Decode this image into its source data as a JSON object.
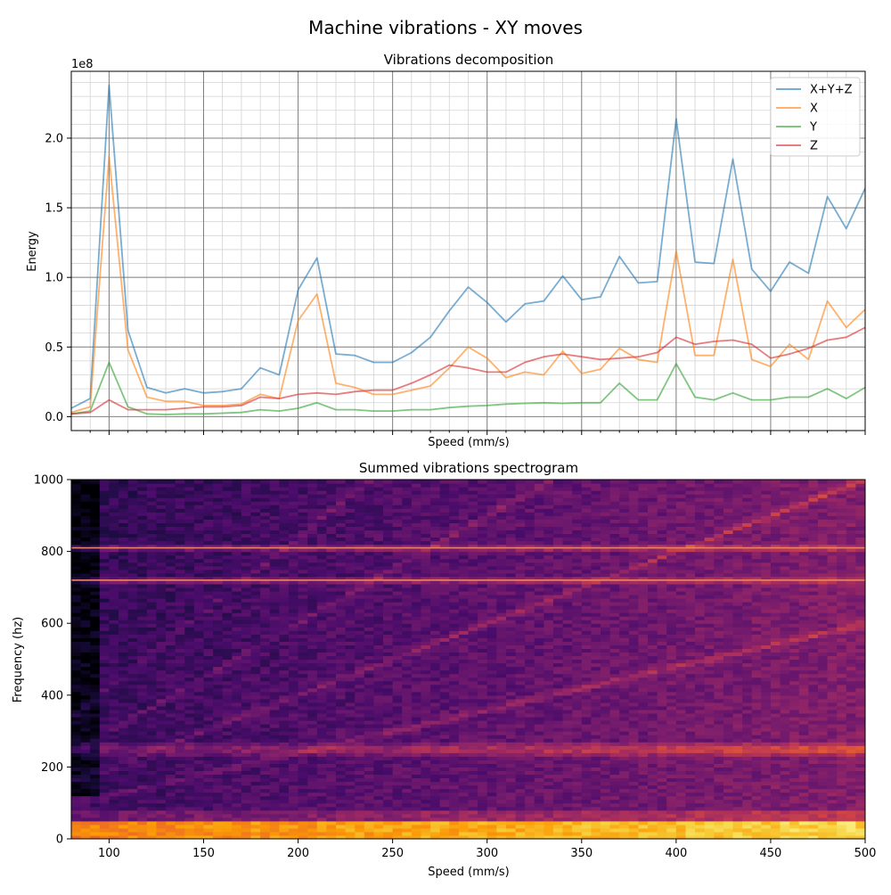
{
  "figure": {
    "title": "Machine vibrations - XY moves"
  },
  "chart_data": [
    {
      "type": "line",
      "title": "Vibrations decomposition",
      "xlabel": "Speed (mm/s)",
      "ylabel": "Energy",
      "y_offset_label": "1e8",
      "xlim": [
        80,
        500
      ],
      "ylim": [
        -0.1,
        2.48
      ],
      "y_units": "1e8",
      "xticks": [
        100,
        150,
        200,
        250,
        300,
        350,
        400,
        450,
        500
      ],
      "yticks": [
        0.0,
        0.5,
        1.0,
        1.5,
        2.0
      ],
      "ytick_labels": [
        "0.0",
        "0.5",
        "1.0",
        "1.5",
        "2.0"
      ],
      "grid": true,
      "legend": "top-right",
      "x": [
        80,
        90,
        100,
        110,
        120,
        130,
        140,
        150,
        160,
        170,
        180,
        190,
        200,
        210,
        220,
        230,
        240,
        250,
        260,
        270,
        280,
        290,
        300,
        310,
        320,
        330,
        340,
        350,
        360,
        370,
        380,
        390,
        400,
        410,
        420,
        430,
        440,
        450,
        460,
        470,
        480,
        490,
        500
      ],
      "series": [
        {
          "name": "X+Y+Z",
          "color": "#1f77b4",
          "values": [
            0.06,
            0.13,
            2.38,
            0.62,
            0.21,
            0.17,
            0.2,
            0.17,
            0.18,
            0.2,
            0.35,
            0.3,
            0.91,
            1.14,
            0.45,
            0.44,
            0.39,
            0.39,
            0.46,
            0.57,
            0.76,
            0.93,
            0.82,
            0.68,
            0.81,
            0.83,
            1.01,
            0.84,
            0.86,
            1.15,
            0.96,
            0.97,
            2.14,
            1.11,
            1.1,
            1.85,
            1.06,
            0.9,
            1.11,
            1.03,
            1.58,
            1.35,
            1.64
          ]
        },
        {
          "name": "X",
          "color": "#ff7f0e",
          "values": [
            0.03,
            0.07,
            1.87,
            0.48,
            0.14,
            0.11,
            0.11,
            0.08,
            0.08,
            0.09,
            0.16,
            0.13,
            0.69,
            0.88,
            0.24,
            0.21,
            0.16,
            0.16,
            0.19,
            0.22,
            0.35,
            0.5,
            0.42,
            0.28,
            0.32,
            0.3,
            0.47,
            0.31,
            0.34,
            0.49,
            0.41,
            0.39,
            1.19,
            0.44,
            0.44,
            1.13,
            0.41,
            0.36,
            0.52,
            0.41,
            0.83,
            0.64,
            0.77
          ]
        },
        {
          "name": "Y",
          "color": "#2ca02c",
          "values": [
            0.02,
            0.04,
            0.39,
            0.07,
            0.02,
            0.015,
            0.02,
            0.02,
            0.025,
            0.03,
            0.05,
            0.04,
            0.06,
            0.1,
            0.05,
            0.05,
            0.04,
            0.04,
            0.05,
            0.05,
            0.065,
            0.075,
            0.08,
            0.09,
            0.095,
            0.1,
            0.095,
            0.1,
            0.1,
            0.24,
            0.12,
            0.12,
            0.38,
            0.14,
            0.12,
            0.17,
            0.12,
            0.12,
            0.14,
            0.14,
            0.2,
            0.13,
            0.21
          ]
        },
        {
          "name": "Z",
          "color": "#d62728",
          "values": [
            0.02,
            0.03,
            0.12,
            0.05,
            0.05,
            0.05,
            0.06,
            0.07,
            0.07,
            0.08,
            0.14,
            0.13,
            0.16,
            0.17,
            0.16,
            0.18,
            0.19,
            0.19,
            0.24,
            0.3,
            0.37,
            0.35,
            0.32,
            0.32,
            0.39,
            0.43,
            0.45,
            0.43,
            0.41,
            0.42,
            0.43,
            0.46,
            0.57,
            0.52,
            0.54,
            0.55,
            0.52,
            0.42,
            0.45,
            0.49,
            0.55,
            0.57,
            0.64
          ]
        }
      ]
    },
    {
      "type": "heatmap",
      "title": "Summed vibrations spectrogram",
      "xlabel": "Speed (mm/s)",
      "ylabel": "Frequency (hz)",
      "xlim": [
        80,
        500
      ],
      "ylim": [
        0,
        1000
      ],
      "xticks": [
        100,
        150,
        200,
        250,
        300,
        350,
        400,
        450,
        500
      ],
      "yticks": [
        0,
        200,
        400,
        600,
        800,
        1000
      ],
      "colormap": "inferno",
      "colormap_stops": [
        "#000004",
        "#1b0c41",
        "#4a0c6b",
        "#781c6d",
        "#a52c60",
        "#cf4446",
        "#ed6925",
        "#fb9b06",
        "#f7d13d",
        "#fcffa4"
      ],
      "constant_lines_hz": [
        720,
        810
      ],
      "strong_band_hz": [
        0,
        50
      ],
      "resonance_band_hz": 250
    }
  ]
}
